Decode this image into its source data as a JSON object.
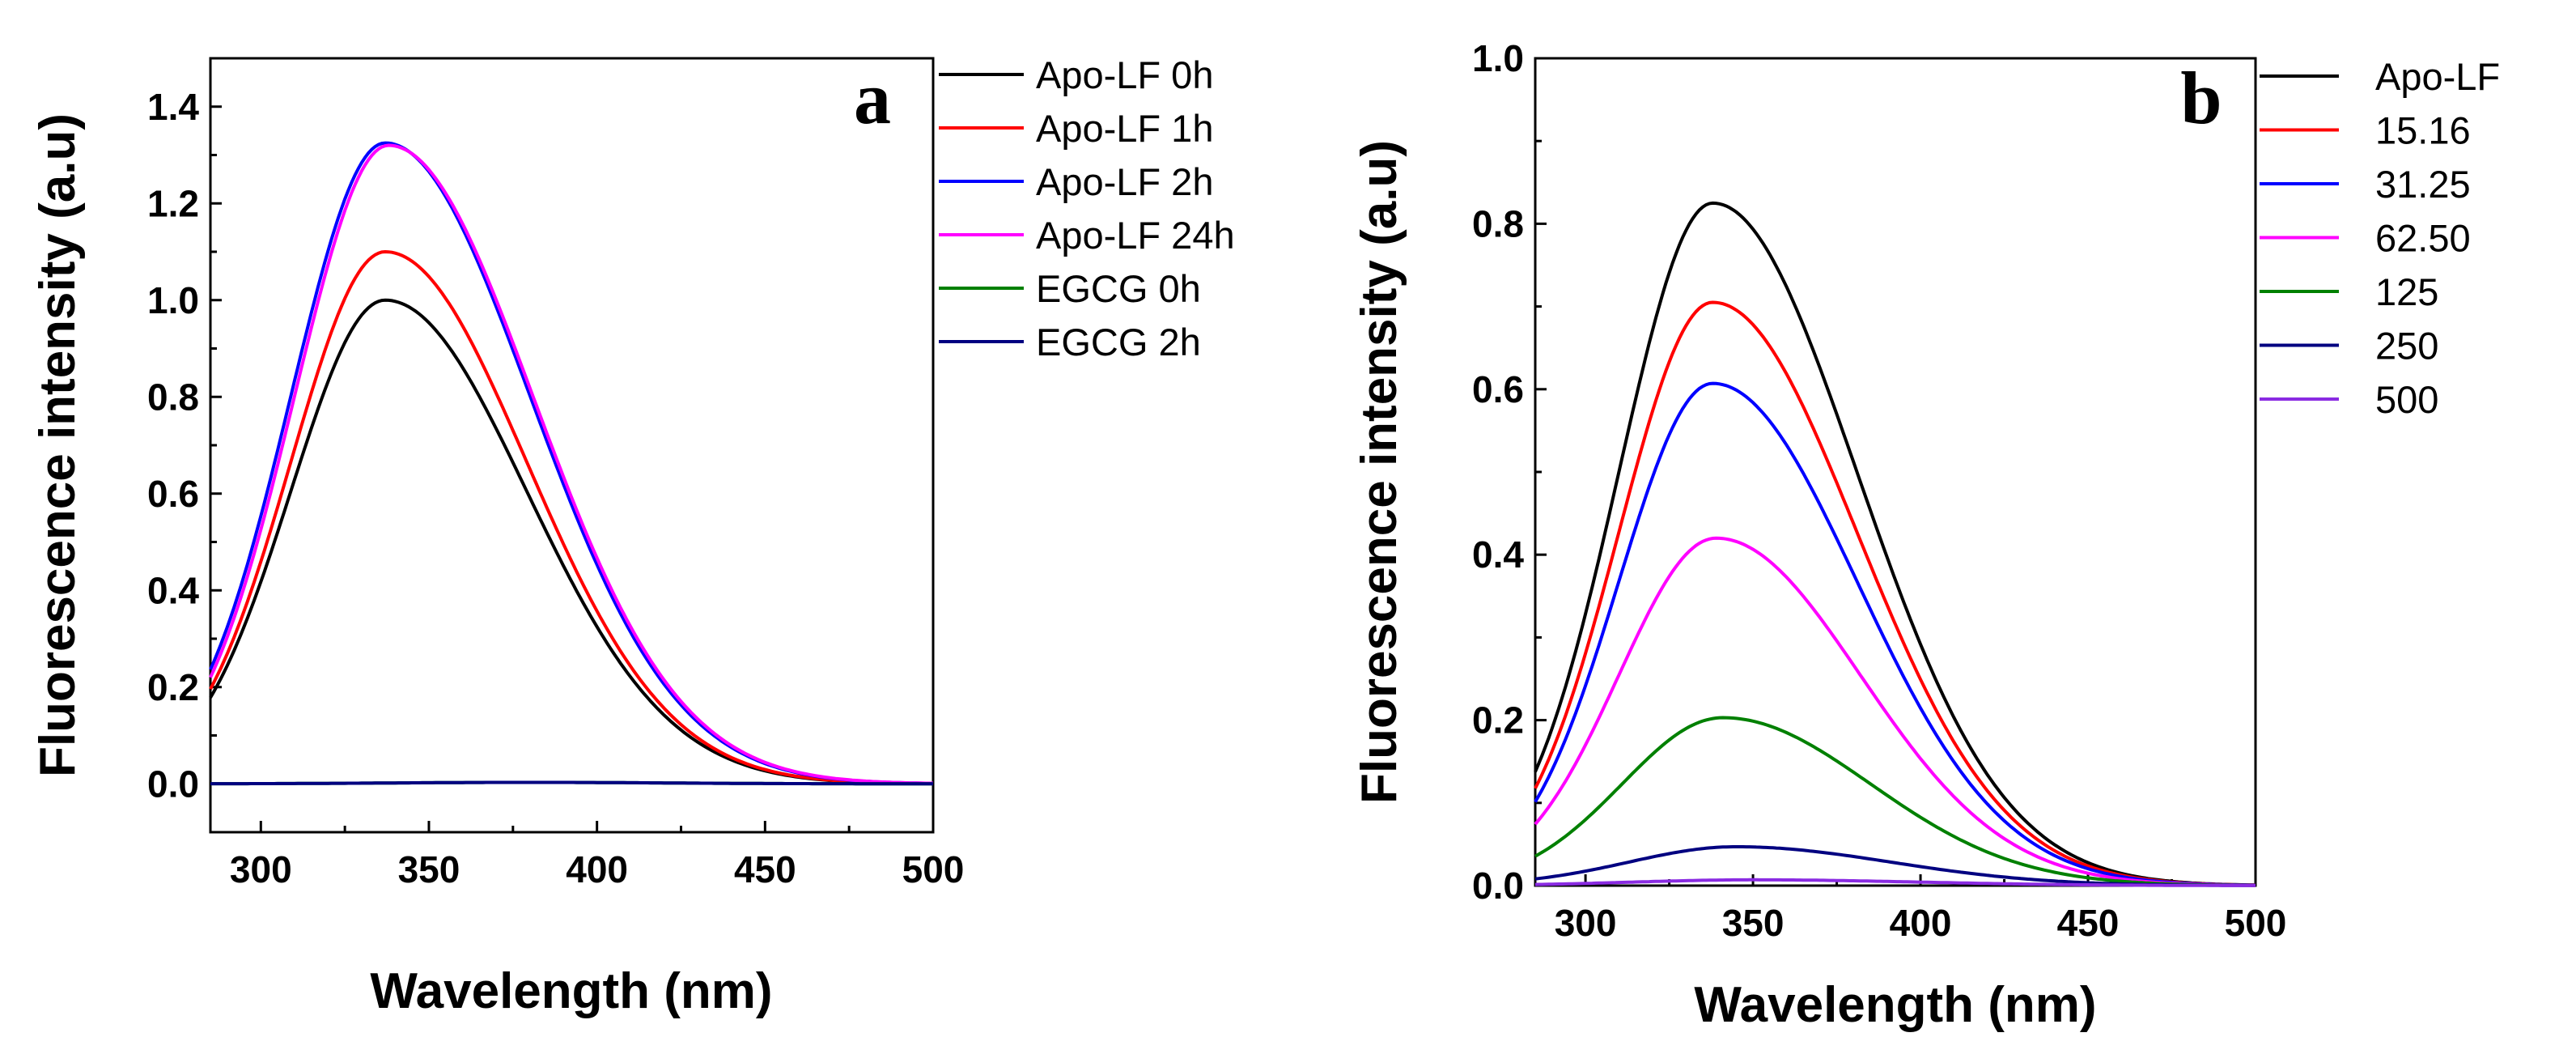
{
  "chart_data": [
    {
      "type": "line",
      "panel_label": "a",
      "xlabel": "Wavelength (nm)",
      "ylabel": "Fluorescence intensity (a.u)",
      "xlim": [
        285,
        500
      ],
      "ylim": [
        -0.1,
        1.5
      ],
      "xticks": [
        "300",
        "350",
        "400",
        "450",
        "500"
      ],
      "yticks": [
        "0.0",
        "0.2",
        "0.4",
        "0.6",
        "0.8",
        "1.0",
        "1.2",
        "1.4"
      ],
      "legend_position": "outside-right",
      "series": [
        {
          "name": "Apo-LF 0h",
          "color": "#000000",
          "peak_x": 337,
          "peak_y": 1.0,
          "left_width": 28,
          "right_width": 42
        },
        {
          "name": "Apo-LF 1h",
          "color": "#ff0000",
          "peak_x": 337,
          "peak_y": 1.1,
          "left_width": 28,
          "right_width": 42
        },
        {
          "name": "Apo-LF 2h",
          "color": "#0000ff",
          "peak_x": 337,
          "peak_y": 1.325,
          "left_width": 28,
          "right_width": 43
        },
        {
          "name": "Apo-LF 24h",
          "color": "#ff00ff",
          "peak_x": 338,
          "peak_y": 1.32,
          "left_width": 28,
          "right_width": 43
        },
        {
          "name": "EGCG 0h",
          "color": "#008000",
          "peak_x": 380,
          "peak_y": 0.003,
          "left_width": 40,
          "right_width": 40
        },
        {
          "name": "EGCG 2h",
          "color": "#000080",
          "peak_x": 380,
          "peak_y": 0.003,
          "left_width": 40,
          "right_width": 40
        }
      ]
    },
    {
      "type": "line",
      "panel_label": "b",
      "xlabel": "Wavelength (nm)",
      "ylabel": "Fluorescence intensity (a.u)",
      "xlim": [
        285,
        500
      ],
      "ylim": [
        0,
        1.0
      ],
      "xticks": [
        "300",
        "350",
        "400",
        "450",
        "500"
      ],
      "yticks": [
        "0.0",
        "0.2",
        "0.4",
        "0.6",
        "0.8",
        "1.0"
      ],
      "legend_position": "outside-right",
      "series": [
        {
          "name": "Apo-LF",
          "color": "#000000",
          "peak_x": 338,
          "peak_y": 0.825,
          "left_width": 28,
          "right_width": 43
        },
        {
          "name": "15.16",
          "color": "#ff0000",
          "peak_x": 338,
          "peak_y": 0.705,
          "left_width": 28,
          "right_width": 43
        },
        {
          "name": "31.25",
          "color": "#0000ff",
          "peak_x": 338,
          "peak_y": 0.607,
          "left_width": 28,
          "right_width": 43
        },
        {
          "name": "62.50",
          "color": "#ff00ff",
          "peak_x": 339,
          "peak_y": 0.42,
          "left_width": 29,
          "right_width": 43
        },
        {
          "name": "125",
          "color": "#008000",
          "peak_x": 341,
          "peak_y": 0.203,
          "left_width": 30,
          "right_width": 44
        },
        {
          "name": "250",
          "color": "#000080",
          "peak_x": 345,
          "peak_y": 0.047,
          "left_width": 32,
          "right_width": 46
        },
        {
          "name": "500",
          "color": "#8a2be2",
          "peak_x": 350,
          "peak_y": 0.007,
          "left_width": 36,
          "right_width": 50
        }
      ]
    }
  ]
}
